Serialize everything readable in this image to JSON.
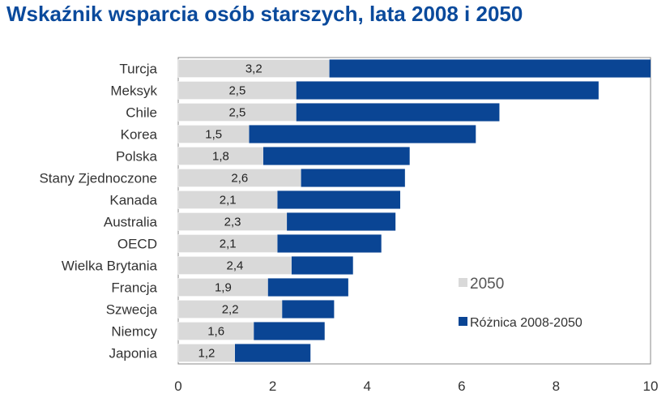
{
  "chart_data": {
    "type": "bar",
    "orientation": "horizontal",
    "stacked": true,
    "title": "Wskaźnik wsparcia osób starszych, lata 2008 i 2050",
    "categories": [
      "Turcja",
      "Meksyk",
      "Chile",
      "Korea",
      "Polska",
      "Stany Zjednoczone",
      "Kanada",
      "Australia",
      "OECD",
      "Wielka Brytania",
      "Francja",
      "Szwecja",
      "Niemcy",
      "Japonia"
    ],
    "series": [
      {
        "name": "2050",
        "color": "#d9d9d9",
        "values": [
          3.2,
          2.5,
          2.5,
          1.5,
          1.8,
          2.6,
          2.1,
          2.3,
          2.1,
          2.4,
          1.9,
          2.2,
          1.6,
          1.2
        ],
        "labels": [
          "3,2",
          "2,5",
          "2,5",
          "1,5",
          "1,8",
          "2,6",
          "2,1",
          "2,3",
          "2,1",
          "2,4",
          "1,9",
          "2,2",
          "1,6",
          "1,2"
        ]
      },
      {
        "name": "Różnica 2008-2050",
        "color": "#0a4594",
        "values": [
          6.8,
          6.4,
          4.3,
          4.8,
          3.1,
          2.2,
          2.6,
          2.3,
          2.2,
          1.3,
          1.7,
          1.1,
          1.5,
          1.6
        ]
      }
    ],
    "xlim": [
      0,
      10
    ],
    "xticks": [
      "0",
      "2",
      "4",
      "6",
      "8",
      "10"
    ],
    "xtick_values": [
      0,
      2,
      4,
      6,
      8,
      10
    ],
    "grid": false,
    "legend_position": "bottom-right inside plot"
  }
}
